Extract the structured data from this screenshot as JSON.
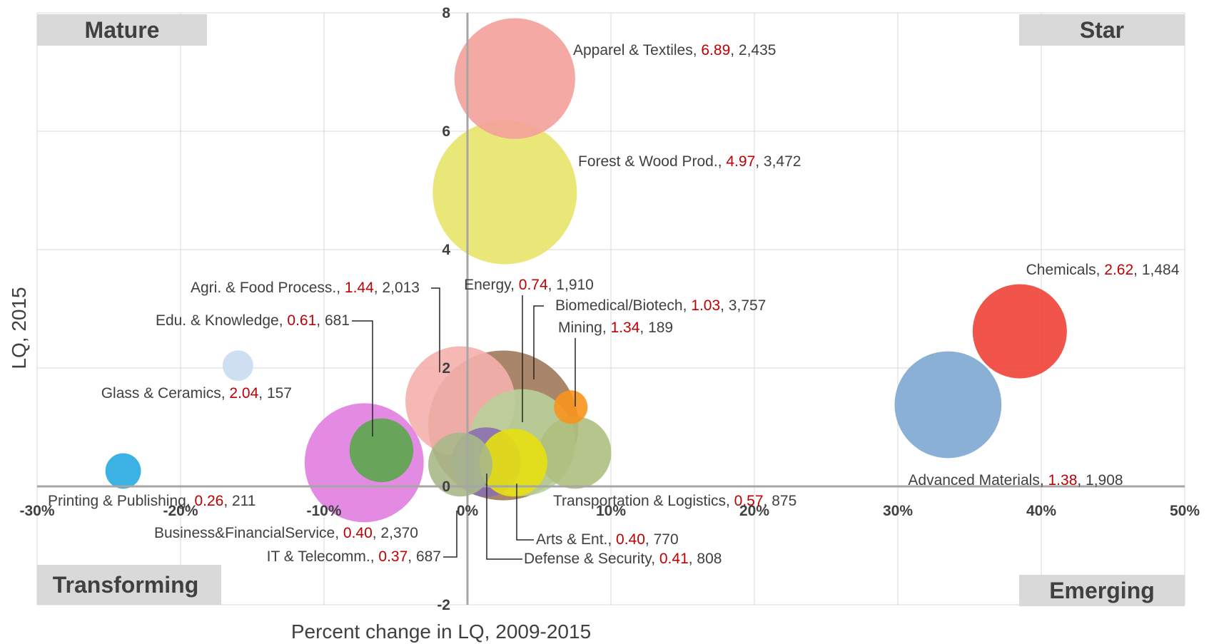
{
  "chart_data": {
    "type": "scatter",
    "variant": "bubble",
    "xlabel": "Percent change in LQ, 2009-2015",
    "ylabel": "LQ, 2015",
    "xlim": [
      -0.3,
      0.5
    ],
    "ylim": [
      -2,
      8
    ],
    "x_ticks": [
      "-30%",
      "-20%",
      "-10%",
      "0%",
      "10%",
      "20%",
      "30%",
      "40%",
      "50%"
    ],
    "y_ticks": [
      "-2",
      "0",
      "2",
      "4",
      "6",
      "8"
    ],
    "grid": true,
    "quadrants": [
      {
        "name": "Mature",
        "position": "top-left"
      },
      {
        "name": "Star",
        "position": "top-right"
      },
      {
        "name": "Transforming",
        "position": "bottom-left"
      },
      {
        "name": "Emerging",
        "position": "bottom-right"
      }
    ],
    "series": [
      {
        "name": "Apparel & Textiles",
        "x": 0.033,
        "y": 6.89,
        "size": 2435,
        "lq": "6.89",
        "size_label": "2,435",
        "color": "#f4a09a"
      },
      {
        "name": "Forest & Wood Prod.",
        "x": 0.026,
        "y": 4.97,
        "size": 3472,
        "lq": "4.97",
        "size_label": "3,472",
        "color": "#e8e46a"
      },
      {
        "name": "Chemicals",
        "x": 0.385,
        "y": 2.62,
        "size": 1484,
        "lq": "2.62",
        "size_label": "1,484",
        "color": "#ef4136"
      },
      {
        "name": "Advanced Materials",
        "x": 0.335,
        "y": 1.38,
        "size": 1908,
        "lq": "1.38",
        "size_label": "1,908",
        "color": "#7ea7d0"
      },
      {
        "name": "Agri. & Food Process.",
        "x": -0.005,
        "y": 1.44,
        "size": 2013,
        "lq": "1.44",
        "size_label": "2,013",
        "color": "#f4b0ac"
      },
      {
        "name": "Edu. & Knowledge",
        "x": -0.06,
        "y": 0.61,
        "size": 681,
        "lq": "0.61",
        "size_label": "681",
        "color": "#5aa64a"
      },
      {
        "name": "Glass & Ceramics",
        "x": -0.16,
        "y": 2.04,
        "size": 157,
        "lq": "2.04",
        "size_label": "157",
        "color": "#c9dcef"
      },
      {
        "name": "Energy",
        "x": 0.038,
        "y": 0.74,
        "size": 1910,
        "lq": "0.74",
        "size_label": "1,910",
        "color": "#b8d09a"
      },
      {
        "name": "Biomedical/Biotech",
        "x": 0.025,
        "y": 1.03,
        "size": 3757,
        "lq": "1.03",
        "size_label": "3,757",
        "color": "#a0785a"
      },
      {
        "name": "Mining",
        "x": 0.072,
        "y": 1.34,
        "size": 189,
        "lq": "1.34",
        "size_label": "189",
        "color": "#f7941d"
      },
      {
        "name": "Printing & Publishing",
        "x": -0.24,
        "y": 0.26,
        "size": 211,
        "lq": "0.26",
        "size_label": "211",
        "color": "#27aae1"
      },
      {
        "name": "Business&FinancialService",
        "x": -0.072,
        "y": 0.4,
        "size": 2370,
        "lq": "0.40",
        "size_label": "2,370",
        "color": "#e07ee0"
      },
      {
        "name": "IT & Telecomm.",
        "x": -0.005,
        "y": 0.37,
        "size": 687,
        "lq": "0.37",
        "size_label": "687",
        "color": "#a9b88a"
      },
      {
        "name": "Transportation & Logistics",
        "x": 0.075,
        "y": 0.57,
        "size": 875,
        "lq": "0.57",
        "size_label": "875",
        "color": "#aebf7e"
      },
      {
        "name": "Arts & Ent.",
        "x": 0.032,
        "y": 0.4,
        "size": 770,
        "lq": "0.40",
        "size_label": "770",
        "color": "#e8e010"
      },
      {
        "name": "Defense & Security",
        "x": 0.013,
        "y": 0.41,
        "size": 808,
        "lq": "0.41",
        "size_label": "808",
        "color": "#8a6fb0"
      }
    ]
  }
}
